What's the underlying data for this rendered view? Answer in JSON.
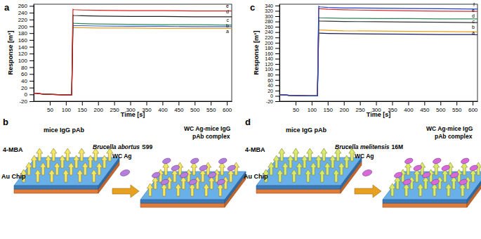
{
  "chart_data": [
    {
      "type": "line",
      "title": "a",
      "x_label": "Time [s]",
      "y_label": "Response [m°]",
      "x": [
        0,
        10,
        30,
        60,
        90,
        118,
        122,
        125,
        150,
        200,
        300,
        400,
        500,
        600,
        615
      ],
      "series": [
        {
          "name": "a",
          "color": "#e8a020",
          "values": [
            4,
            3,
            1,
            0,
            -1,
            -1,
            197,
            196,
            196,
            195,
            195,
            194,
            194,
            194,
            194
          ]
        },
        {
          "name": "b",
          "color": "#3a5fcd",
          "values": [
            4,
            3,
            1,
            0,
            -1,
            -1,
            203,
            202,
            202,
            201,
            200,
            200,
            199,
            199,
            199
          ]
        },
        {
          "name": "c",
          "color": "#2e8b57",
          "values": [
            4,
            3,
            1,
            0,
            -1,
            -1,
            210,
            209,
            208,
            207,
            206,
            205,
            205,
            204,
            204
          ]
        },
        {
          "name": "d",
          "color": "#222222",
          "values": [
            4,
            3,
            1,
            0,
            -1,
            -1,
            233,
            232,
            231,
            230,
            229,
            229,
            228,
            228,
            228
          ]
        },
        {
          "name": "e",
          "color": "#e02020",
          "values": [
            4,
            3,
            1,
            0,
            -1,
            -1,
            250,
            249,
            248,
            247,
            246,
            246,
            245,
            245,
            245
          ]
        }
      ],
      "xlim": [
        0,
        615
      ],
      "xticks": [
        50,
        100,
        150,
        200,
        250,
        300,
        350,
        400,
        450,
        500,
        550,
        600
      ],
      "ylim": [
        -20,
        265
      ],
      "yticks": [
        -20,
        0,
        20,
        40,
        60,
        80,
        100,
        120,
        140,
        160,
        180,
        200,
        220,
        240,
        260
      ],
      "grid": false
    },
    {
      "type": "line",
      "title": "c",
      "x_label": "Time [s]",
      "y_label": "Response [m°]",
      "x": [
        0,
        10,
        30,
        60,
        90,
        118,
        122,
        125,
        150,
        200,
        300,
        400,
        500,
        600,
        615
      ],
      "series": [
        {
          "name": "a",
          "color": "#1a1a5a",
          "values": [
            5,
            4,
            2,
            1,
            0,
            0,
            237,
            236,
            235,
            234,
            233,
            232,
            231,
            231,
            230
          ]
        },
        {
          "name": "b",
          "color": "#e8a020",
          "values": [
            5,
            4,
            2,
            1,
            0,
            0,
            250,
            248,
            247,
            245,
            244,
            243,
            242,
            241,
            241
          ]
        },
        {
          "name": "c",
          "color": "#333333",
          "values": [
            5,
            4,
            2,
            1,
            0,
            0,
            283,
            282,
            281,
            280,
            279,
            278,
            277,
            276,
            276
          ]
        },
        {
          "name": "d",
          "color": "#2e8b57",
          "values": [
            5,
            4,
            2,
            1,
            0,
            0,
            295,
            294,
            293,
            292,
            291,
            291,
            290,
            290,
            290
          ]
        },
        {
          "name": "e",
          "color": "#d03030",
          "values": [
            5,
            4,
            2,
            1,
            0,
            0,
            330,
            328,
            326,
            324,
            322,
            320,
            319,
            318,
            318
          ]
        },
        {
          "name": "f",
          "color": "#2040d0",
          "values": [
            5,
            4,
            2,
            1,
            0,
            0,
            337,
            335,
            333,
            331,
            330,
            329,
            328,
            327,
            327
          ]
        }
      ],
      "xlim": [
        0,
        615
      ],
      "xticks": [
        50,
        100,
        150,
        200,
        250,
        300,
        350,
        400,
        450,
        500,
        550,
        600
      ],
      "ylim": [
        -20,
        345
      ],
      "yticks": [
        -20,
        0,
        20,
        40,
        60,
        80,
        100,
        120,
        140,
        160,
        180,
        200,
        220,
        240,
        260,
        280,
        300,
        320,
        340
      ],
      "grid": false
    }
  ],
  "diagrams": [
    {
      "label": "b",
      "probe": "mice IgG pAb",
      "linker": "4-MBA",
      "chip": "Au Chip",
      "antigen": {
        "species": "Brucella abortus",
        "strain": "S99",
        "name": "WC Ag"
      },
      "complex": [
        "WC Ag-mice IgG",
        "pAb complex"
      ]
    },
    {
      "label": "d",
      "probe": "mice IgG pAb",
      "linker": "4-MBA",
      "chip": "Au Chip",
      "antigen": {
        "species": "Brucella melitensis",
        "strain": "16M",
        "name": "WC Ag"
      },
      "complex": [
        "WC Ag-mice IgG",
        "pAb complex"
      ]
    }
  ]
}
